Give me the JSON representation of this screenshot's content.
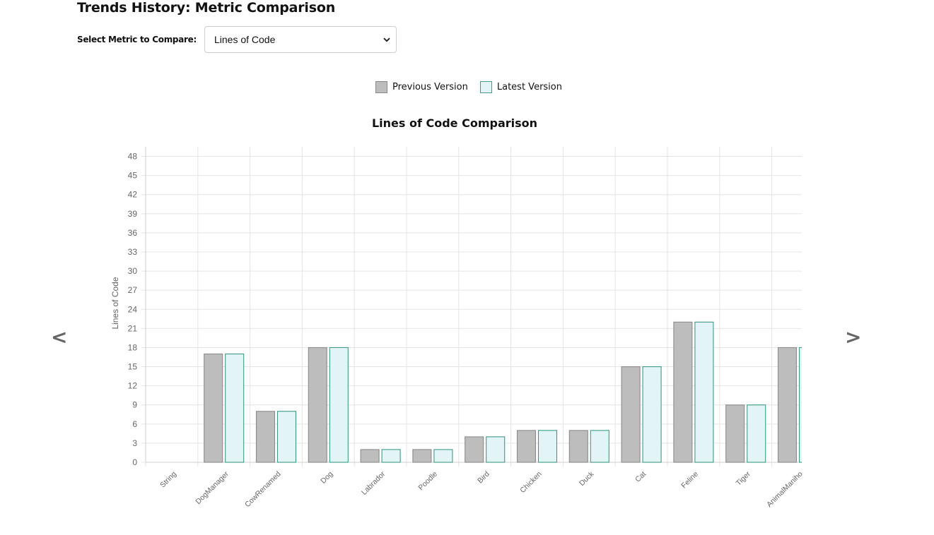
{
  "page": {
    "title": "Trends History: Metric Comparison"
  },
  "metric_selector": {
    "label": "Select Metric to Compare:",
    "selected": "Lines of Code"
  },
  "navigation": {
    "prev": "<",
    "next": ">"
  },
  "colors": {
    "previous_fill": "#bdbdbd",
    "previous_stroke": "#8c8c8c",
    "latest_fill": "#e3f4f7",
    "latest_stroke": "#3f9a85",
    "grid": "#e4e4e4",
    "axis_text": "#666666"
  },
  "icons": {
    "select_chevron": "chevron-down-icon"
  },
  "chart_data": {
    "type": "bar",
    "title": "Lines of Code Comparison",
    "ylabel": "Lines of Code",
    "xlabel": "",
    "ylim": [
      0,
      49.5
    ],
    "yticks": [
      0,
      3,
      6,
      9,
      12,
      15,
      18,
      21,
      24,
      27,
      30,
      33,
      36,
      39,
      42,
      45,
      48
    ],
    "grid": true,
    "legend_position": "top-center",
    "categories": [
      "String",
      "DogManager",
      "CowRenamed",
      "Dog",
      "Labrador",
      "Poodle",
      "Bird",
      "Chicken",
      "Duck",
      "Cat",
      "Feline",
      "Tiger",
      "AnimalManiho"
    ],
    "series": [
      {
        "name": "Previous Version",
        "values": [
          0,
          17,
          8,
          18,
          2,
          2,
          4,
          5,
          5,
          15,
          22,
          9,
          18
        ]
      },
      {
        "name": "Latest Version",
        "values": [
          0,
          17,
          8,
          18,
          2,
          2,
          4,
          5,
          5,
          15,
          22,
          9,
          18
        ]
      }
    ]
  }
}
